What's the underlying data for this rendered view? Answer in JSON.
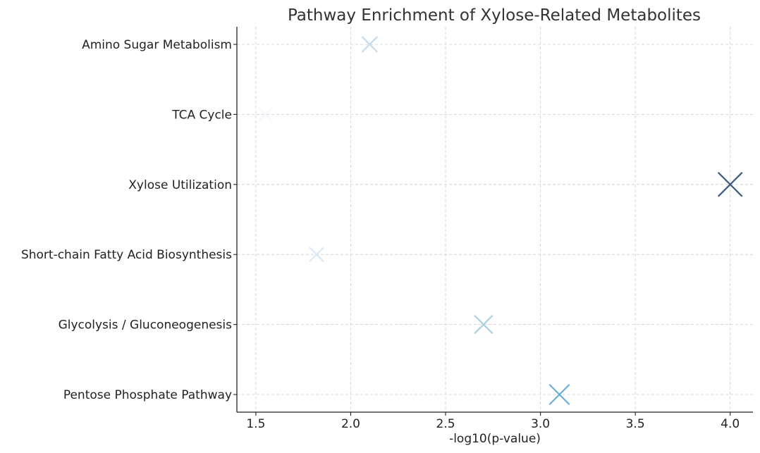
{
  "chart_data": {
    "type": "scatter",
    "title": "Pathway Enrichment of Xylose-Related Metabolites",
    "xlabel": "-log10(p-value)",
    "ylabel": "",
    "xlim": [
      1.4,
      4.12
    ],
    "xticks": [
      1.5,
      2.0,
      2.5,
      3.0,
      3.5,
      4.0
    ],
    "xtick_labels": [
      "1.5",
      "2.0",
      "2.5",
      "3.0",
      "3.5",
      "4.0"
    ],
    "grid": true,
    "marker": "x",
    "colormap": "Blues",
    "categories": [
      "Pentose Phosphate Pathway",
      "Glycolysis / Gluconeogenesis",
      "Short-chain Fatty Acid Biosynthesis",
      "Xylose Utilization",
      "TCA Cycle",
      "Amino Sugar Metabolism"
    ],
    "points": [
      {
        "category": "Pentose Phosphate Pathway",
        "x": 3.1,
        "color": "#6aaed6"
      },
      {
        "category": "Glycolysis / Gluconeogenesis",
        "x": 2.7,
        "color": "#a9cfe5"
      },
      {
        "category": "Short-chain Fatty Acid Biosynthesis",
        "x": 1.82,
        "color": "#dce9f6"
      },
      {
        "category": "Xylose Utilization",
        "x": 4.0,
        "color": "#3a5a80"
      },
      {
        "category": "TCA Cycle",
        "x": 1.55,
        "color": "#f4f8fd"
      },
      {
        "category": "Amino Sugar Metabolism",
        "x": 2.1,
        "color": "#c8dcef"
      }
    ]
  }
}
